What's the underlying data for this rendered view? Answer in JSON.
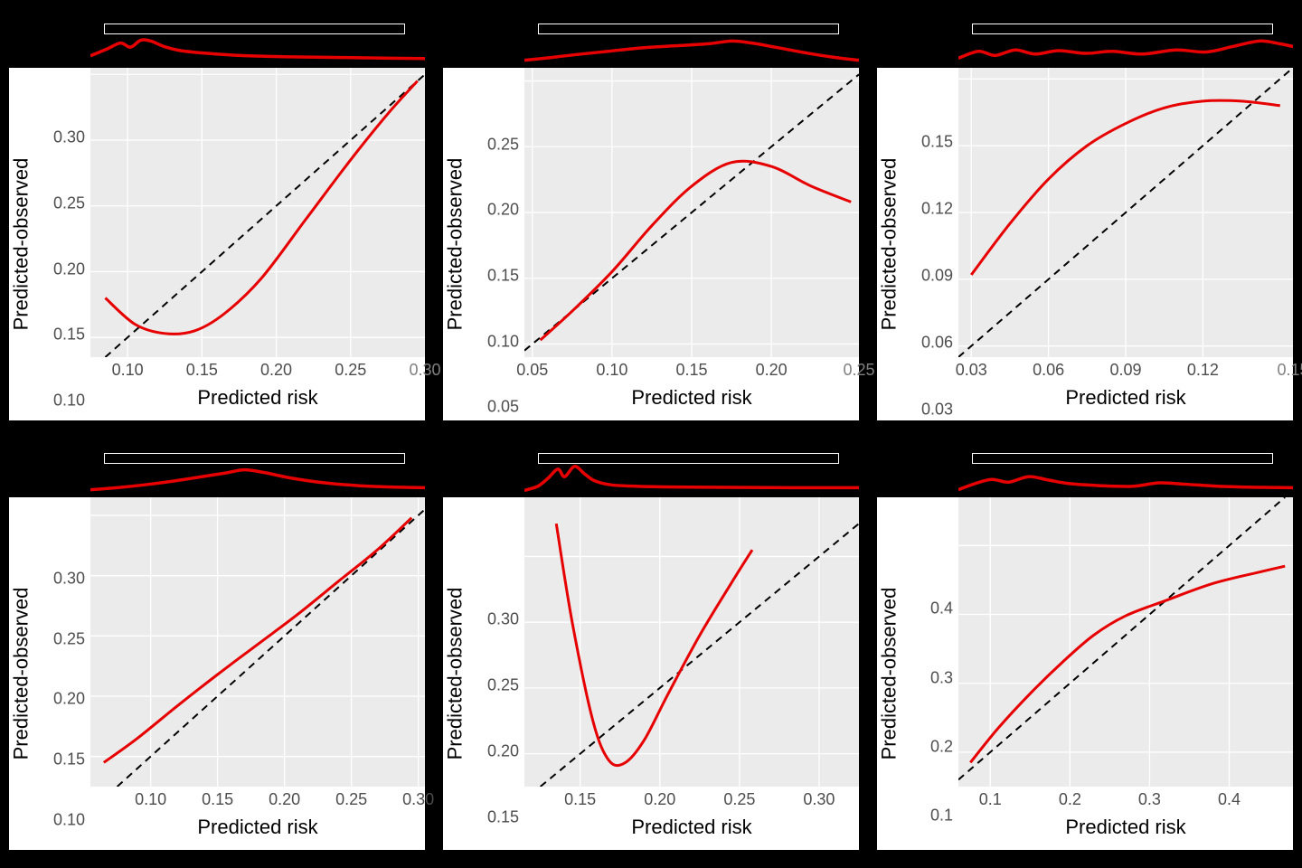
{
  "figure": {
    "background_color": "#000000",
    "panel_background": "#ffffff",
    "plot_background": "#ebebeb",
    "grid_color": "#ffffff",
    "tick_color": "#4d4d4d",
    "label_color": "#000000",
    "diagonal_color": "#000000",
    "diagonal_dash": "8,6",
    "diagonal_width": 2,
    "curve_color": "#e60000",
    "curve_width": 3,
    "density_curve_color": "#e60000",
    "density_curve_width": 3.5,
    "density_box_border": "#ffffff",
    "axis_label_fontsize": 22,
    "tick_fontsize": 18,
    "layout": {
      "rows": 2,
      "cols": 3
    }
  },
  "panels": [
    {
      "id": "p1",
      "xlabel": "Predicted risk",
      "ylabel": "Predicted-observed",
      "xlim": [
        0.075,
        0.3
      ],
      "ylim": [
        0.085,
        0.305
      ],
      "xticks": [
        0.1,
        0.15,
        0.2,
        0.25
      ],
      "yticks": [
        0.1,
        0.15,
        0.2,
        0.25,
        0.3
      ],
      "xticks_labels": [
        "0.10",
        "0.15",
        "0.20",
        "0.25"
      ],
      "yticks_labels": [
        "0.10",
        "0.15",
        "0.20",
        "0.25",
        "0.30"
      ],
      "extra_x_label": "0.30",
      "curve": [
        [
          0.085,
          0.13
        ],
        [
          0.105,
          0.11
        ],
        [
          0.125,
          0.103
        ],
        [
          0.145,
          0.105
        ],
        [
          0.165,
          0.118
        ],
        [
          0.19,
          0.145
        ],
        [
          0.22,
          0.19
        ],
        [
          0.25,
          0.235
        ],
        [
          0.275,
          0.27
        ],
        [
          0.295,
          0.295
        ]
      ],
      "density_box": {
        "left_pct": 19,
        "width_pct": 70
      },
      "density_curve": [
        [
          0,
          0.35
        ],
        [
          0.05,
          0.55
        ],
        [
          0.09,
          0.72
        ],
        [
          0.12,
          0.6
        ],
        [
          0.15,
          0.8
        ],
        [
          0.18,
          0.78
        ],
        [
          0.22,
          0.62
        ],
        [
          0.27,
          0.5
        ],
        [
          0.35,
          0.42
        ],
        [
          0.45,
          0.36
        ],
        [
          0.6,
          0.32
        ],
        [
          0.75,
          0.3
        ],
        [
          0.9,
          0.28
        ],
        [
          1.0,
          0.27
        ]
      ]
    },
    {
      "id": "p2",
      "xlabel": "Predicted risk",
      "ylabel": "Predicted-observed",
      "xlim": [
        0.045,
        0.255
      ],
      "ylim": [
        0.04,
        0.26
      ],
      "xticks": [
        0.05,
        0.1,
        0.15,
        0.2
      ],
      "yticks": [
        0.05,
        0.1,
        0.15,
        0.2,
        0.25
      ],
      "xticks_labels": [
        "0.05",
        "0.10",
        "0.15",
        "0.20"
      ],
      "yticks_labels": [
        "0.05",
        "0.10",
        "0.15",
        "0.20",
        "0.25"
      ],
      "extra_x_label": "0.25",
      "curve": [
        [
          0.055,
          0.053
        ],
        [
          0.075,
          0.075
        ],
        [
          0.1,
          0.105
        ],
        [
          0.125,
          0.14
        ],
        [
          0.15,
          0.17
        ],
        [
          0.175,
          0.188
        ],
        [
          0.2,
          0.185
        ],
        [
          0.225,
          0.17
        ],
        [
          0.25,
          0.158
        ]
      ],
      "density_box": {
        "left_pct": 19,
        "width_pct": 70
      },
      "density_curve": [
        [
          0,
          0.22
        ],
        [
          0.08,
          0.3
        ],
        [
          0.15,
          0.38
        ],
        [
          0.25,
          0.48
        ],
        [
          0.35,
          0.58
        ],
        [
          0.45,
          0.64
        ],
        [
          0.55,
          0.7
        ],
        [
          0.62,
          0.78
        ],
        [
          0.68,
          0.72
        ],
        [
          0.75,
          0.6
        ],
        [
          0.85,
          0.42
        ],
        [
          0.93,
          0.3
        ],
        [
          1.0,
          0.22
        ]
      ]
    },
    {
      "id": "p3",
      "xlabel": "Predicted risk",
      "ylabel": "Predicted-observed",
      "xlim": [
        0.025,
        0.155
      ],
      "ylim": [
        0.025,
        0.155
      ],
      "xticks": [
        0.03,
        0.06,
        0.09,
        0.12
      ],
      "yticks": [
        0.03,
        0.06,
        0.09,
        0.12,
        0.15
      ],
      "xticks_labels": [
        "0.03",
        "0.06",
        "0.09",
        "0.12"
      ],
      "yticks_labels": [
        "0.03",
        "0.06",
        "0.09",
        "0.12",
        "0.15"
      ],
      "extra_x_label": "0.15",
      "curve": [
        [
          0.03,
          0.062
        ],
        [
          0.045,
          0.085
        ],
        [
          0.06,
          0.105
        ],
        [
          0.075,
          0.12
        ],
        [
          0.09,
          0.13
        ],
        [
          0.105,
          0.137
        ],
        [
          0.12,
          0.14
        ],
        [
          0.135,
          0.14
        ],
        [
          0.15,
          0.138
        ]
      ],
      "density_box": {
        "left_pct": 19,
        "width_pct": 70
      },
      "density_curve": [
        [
          0,
          0.28
        ],
        [
          0.06,
          0.48
        ],
        [
          0.11,
          0.36
        ],
        [
          0.17,
          0.52
        ],
        [
          0.23,
          0.4
        ],
        [
          0.3,
          0.5
        ],
        [
          0.38,
          0.42
        ],
        [
          0.46,
          0.48
        ],
        [
          0.55,
          0.4
        ],
        [
          0.65,
          0.52
        ],
        [
          0.74,
          0.46
        ],
        [
          0.82,
          0.62
        ],
        [
          0.9,
          0.78
        ],
        [
          0.96,
          0.7
        ],
        [
          1.0,
          0.62
        ]
      ]
    },
    {
      "id": "p4",
      "xlabel": "Predicted risk",
      "ylabel": "Predicted-observed",
      "xlim": [
        0.055,
        0.305
      ],
      "ylim": [
        0.075,
        0.315
      ],
      "xticks": [
        0.1,
        0.15,
        0.2,
        0.25,
        0.3
      ],
      "yticks": [
        0.1,
        0.15,
        0.2,
        0.25,
        0.3
      ],
      "xticks_labels": [
        "0.10",
        "0.15",
        "0.20",
        "0.25",
        "0.30"
      ],
      "yticks_labels": [
        "0.10",
        "0.15",
        "0.20",
        "0.25",
        "0.30"
      ],
      "extra_x_label": null,
      "curve": [
        [
          0.065,
          0.095
        ],
        [
          0.09,
          0.115
        ],
        [
          0.12,
          0.142
        ],
        [
          0.15,
          0.168
        ],
        [
          0.18,
          0.193
        ],
        [
          0.21,
          0.218
        ],
        [
          0.24,
          0.245
        ],
        [
          0.27,
          0.272
        ],
        [
          0.295,
          0.298
        ]
      ],
      "density_box": {
        "left_pct": 19,
        "width_pct": 70
      },
      "density_curve": [
        [
          0,
          0.22
        ],
        [
          0.08,
          0.28
        ],
        [
          0.16,
          0.36
        ],
        [
          0.24,
          0.46
        ],
        [
          0.32,
          0.58
        ],
        [
          0.4,
          0.7
        ],
        [
          0.46,
          0.8
        ],
        [
          0.52,
          0.72
        ],
        [
          0.6,
          0.56
        ],
        [
          0.7,
          0.42
        ],
        [
          0.8,
          0.34
        ],
        [
          0.9,
          0.3
        ],
        [
          1.0,
          0.28
        ]
      ]
    },
    {
      "id": "p5",
      "xlabel": "Predicted risk",
      "ylabel": "Predicted-observed",
      "xlim": [
        0.115,
        0.325
      ],
      "ylim": [
        0.125,
        0.345
      ],
      "xticks": [
        0.15,
        0.2,
        0.25,
        0.3
      ],
      "yticks": [
        0.15,
        0.2,
        0.25,
        0.3
      ],
      "xticks_labels": [
        "0.15",
        "0.20",
        "0.25",
        "0.30"
      ],
      "yticks_labels": [
        "0.15",
        "0.20",
        "0.25",
        "0.30"
      ],
      "extra_x_label": null,
      "curve": [
        [
          0.135,
          0.325
        ],
        [
          0.145,
          0.25
        ],
        [
          0.158,
          0.175
        ],
        [
          0.168,
          0.145
        ],
        [
          0.178,
          0.143
        ],
        [
          0.19,
          0.16
        ],
        [
          0.205,
          0.195
        ],
        [
          0.225,
          0.24
        ],
        [
          0.245,
          0.28
        ],
        [
          0.258,
          0.305
        ]
      ],
      "density_box": {
        "left_pct": 19,
        "width_pct": 70
      },
      "density_curve": [
        [
          0,
          0.2
        ],
        [
          0.04,
          0.32
        ],
        [
          0.07,
          0.55
        ],
        [
          0.1,
          0.82
        ],
        [
          0.12,
          0.6
        ],
        [
          0.15,
          0.9
        ],
        [
          0.18,
          0.68
        ],
        [
          0.21,
          0.48
        ],
        [
          0.26,
          0.36
        ],
        [
          0.34,
          0.32
        ],
        [
          0.45,
          0.3
        ],
        [
          0.6,
          0.29
        ],
        [
          0.8,
          0.28
        ],
        [
          1.0,
          0.28
        ]
      ]
    },
    {
      "id": "p6",
      "xlabel": "Predicted risk",
      "ylabel": "Predicted-observed",
      "xlim": [
        0.06,
        0.48
      ],
      "ylim": [
        0.05,
        0.47
      ],
      "xticks": [
        0.1,
        0.2,
        0.3,
        0.4
      ],
      "yticks": [
        0.1,
        0.2,
        0.3,
        0.4
      ],
      "xticks_labels": [
        "0.1",
        "0.2",
        "0.3",
        "0.4"
      ],
      "yticks_labels": [
        "0.1",
        "0.2",
        "0.3",
        "0.4"
      ],
      "extra_x_label": null,
      "curve": [
        [
          0.075,
          0.085
        ],
        [
          0.11,
          0.135
        ],
        [
          0.15,
          0.185
        ],
        [
          0.19,
          0.23
        ],
        [
          0.23,
          0.27
        ],
        [
          0.27,
          0.298
        ],
        [
          0.32,
          0.32
        ],
        [
          0.38,
          0.345
        ],
        [
          0.44,
          0.362
        ],
        [
          0.47,
          0.37
        ]
      ],
      "density_box": {
        "left_pct": 19,
        "width_pct": 70
      },
      "density_curve": [
        [
          0,
          0.22
        ],
        [
          0.05,
          0.4
        ],
        [
          0.1,
          0.52
        ],
        [
          0.15,
          0.44
        ],
        [
          0.21,
          0.6
        ],
        [
          0.27,
          0.5
        ],
        [
          0.33,
          0.4
        ],
        [
          0.42,
          0.34
        ],
        [
          0.52,
          0.32
        ],
        [
          0.6,
          0.42
        ],
        [
          0.68,
          0.38
        ],
        [
          0.78,
          0.32
        ],
        [
          0.9,
          0.29
        ],
        [
          1.0,
          0.28
        ]
      ]
    }
  ]
}
